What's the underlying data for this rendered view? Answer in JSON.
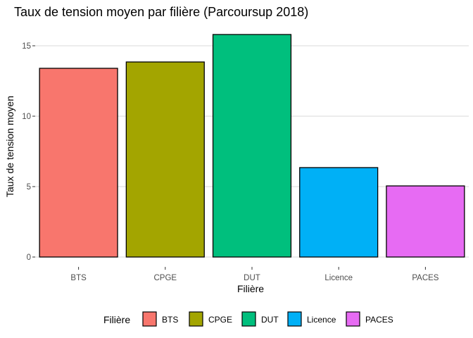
{
  "chart_data": {
    "type": "bar",
    "title": "Taux de tension moyen par filière (Parcoursup 2018)",
    "xlabel": "Filière",
    "ylabel": "Taux de tension moyen",
    "categories": [
      "BTS",
      "CPGE",
      "DUT",
      "Licence",
      "PACES"
    ],
    "values": [
      13.4,
      13.85,
      15.8,
      6.35,
      5.05
    ],
    "colors": [
      "#F8766D",
      "#A3A500",
      "#00BF7D",
      "#00B0F6",
      "#E76BF3"
    ],
    "ylim": [
      0,
      16.5
    ],
    "yticks": [
      0,
      5,
      10,
      15
    ],
    "ytick_labels": [
      "0",
      "5",
      "10",
      "15"
    ],
    "grid": true,
    "legend": {
      "title": "Filière",
      "position": "bottom",
      "entries": [
        "BTS",
        "CPGE",
        "DUT",
        "Licence",
        "PACES"
      ]
    }
  }
}
